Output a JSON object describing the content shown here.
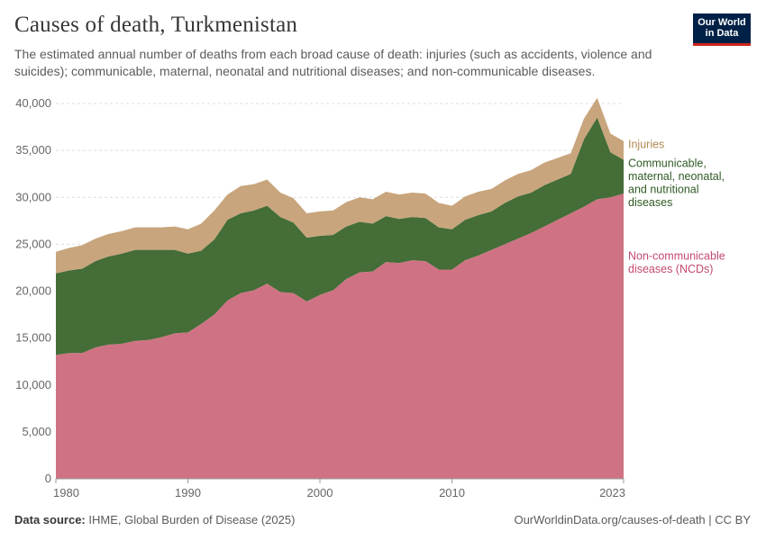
{
  "header": {
    "title": "Causes of death, Turkmenistan",
    "subtitle": "The estimated annual number of deaths from each broad cause of death: injuries (such as accidents, violence and suicides); communicable, maternal, neonatal and nutritional diseases; and non-communicable diseases.",
    "logo_line1": "Our World",
    "logo_line2": "in Data"
  },
  "footer": {
    "source_label": "Data source:",
    "source_text": "IHME, Global Burden of Disease (2025)",
    "url": "OurWorldinData.org/causes-of-death | CC BY"
  },
  "chart_data": {
    "type": "area",
    "stacked": true,
    "x": [
      1980,
      1981,
      1982,
      1983,
      1984,
      1985,
      1986,
      1987,
      1988,
      1989,
      1990,
      1991,
      1992,
      1993,
      1994,
      1995,
      1996,
      1997,
      1998,
      1999,
      2000,
      2001,
      2002,
      2003,
      2004,
      2005,
      2006,
      2007,
      2008,
      2009,
      2010,
      2011,
      2012,
      2013,
      2014,
      2015,
      2016,
      2017,
      2018,
      2019,
      2020,
      2021,
      2022,
      2023
    ],
    "xlim": [
      1980,
      2023
    ],
    "ylim": [
      0,
      40000
    ],
    "x_ticks": [
      1980,
      1990,
      2000,
      2010,
      2023
    ],
    "x_tick_labels": [
      "1980",
      "1990",
      "2000",
      "2010",
      "2023"
    ],
    "y_ticks": [
      0,
      5000,
      10000,
      15000,
      20000,
      25000,
      30000,
      35000,
      40000
    ],
    "y_tick_labels": [
      "0",
      "5,000",
      "10,000",
      "15,000",
      "20,000",
      "25,000",
      "30,000",
      "35,000",
      "40,000"
    ],
    "series": [
      {
        "name": "Non-communicable diseases (NCDs)",
        "label_lines": [
          "Non-communicable",
          "diseases (NCDs)"
        ],
        "color": "#cf7384",
        "text_color": "#c4496d",
        "values": [
          13200,
          13400,
          13400,
          14000,
          14300,
          14400,
          14700,
          14800,
          15100,
          15500,
          15600,
          16500,
          17500,
          19000,
          19800,
          20100,
          20800,
          19900,
          19800,
          18900,
          19600,
          20100,
          21300,
          22000,
          22100,
          23100,
          23000,
          23300,
          23200,
          22300,
          22300,
          23300,
          23800,
          24400,
          25000,
          25600,
          26200,
          26900,
          27600,
          28300,
          29000,
          29800,
          30000,
          30400
        ]
      },
      {
        "name": "Communicable, maternal, neonatal, and nutritional diseases",
        "label_lines": [
          "Communicable,",
          "maternal, neonatal,",
          "and nutritional",
          "diseases"
        ],
        "color": "#446d37",
        "text_color": "#2f5a24",
        "values": [
          8700,
          8800,
          9000,
          9200,
          9400,
          9600,
          9700,
          9600,
          9300,
          8900,
          8400,
          7800,
          8000,
          8600,
          8500,
          8500,
          8300,
          8000,
          7500,
          6800,
          6300,
          5900,
          5600,
          5400,
          5100,
          4900,
          4700,
          4600,
          4600,
          4500,
          4300,
          4300,
          4300,
          4100,
          4400,
          4500,
          4300,
          4400,
          4300,
          4200,
          7200,
          8700,
          4800,
          3600
        ]
      },
      {
        "name": "Injuries",
        "label_lines": [
          "Injuries"
        ],
        "color": "#c8a57d",
        "text_color": "#b28a55",
        "values": [
          2300,
          2400,
          2500,
          2400,
          2400,
          2400,
          2400,
          2400,
          2400,
          2500,
          2600,
          2900,
          3100,
          2700,
          2900,
          2800,
          2800,
          2600,
          2600,
          2600,
          2600,
          2600,
          2600,
          2600,
          2600,
          2600,
          2600,
          2600,
          2600,
          2600,
          2500,
          2500,
          2500,
          2400,
          2400,
          2400,
          2400,
          2400,
          2300,
          2200,
          2200,
          2100,
          2000,
          2000
        ]
      }
    ]
  }
}
